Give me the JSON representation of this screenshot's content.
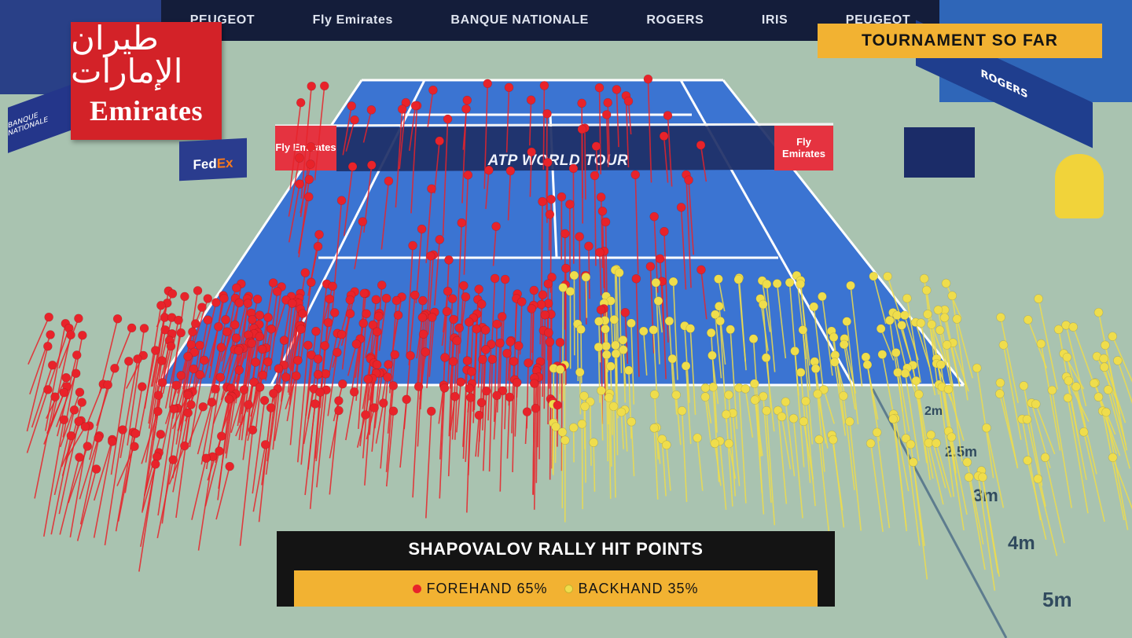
{
  "broadcast": {
    "corner_banner": "TOURNAMENT SO FAR",
    "chart_title": "SHAPOVALOV RALLY HIT POINTS",
    "legend": [
      {
        "label": "FOREHAND 65%",
        "color": "#e8232a"
      },
      {
        "label": "BACKHAND 35%",
        "color": "#efdd4c"
      }
    ]
  },
  "court": {
    "net_text": "ATP WORLD TOUR",
    "net_panel_text": "Fly Emirates",
    "surface_color": "#3b74d2",
    "surround_color": "#a9c3b0",
    "line_color": "#ffffff"
  },
  "sponsors": {
    "emirates_script": "طيران الإمارات",
    "emirates": "Emirates",
    "fedex_prefix": "Fed",
    "fedex_suffix": "Ex",
    "banner": [
      "PEUGEOT",
      "Fly Emirates",
      "BANQUE NATIONALE",
      "ROGERS",
      "IRIS",
      "PEUGEOT"
    ],
    "left_board": "BANQUE NATIONALE",
    "right_board": "ROGERS"
  },
  "distance_scale": [
    "2m",
    "2.5m",
    "3m",
    "4m",
    "5m"
  ]
}
